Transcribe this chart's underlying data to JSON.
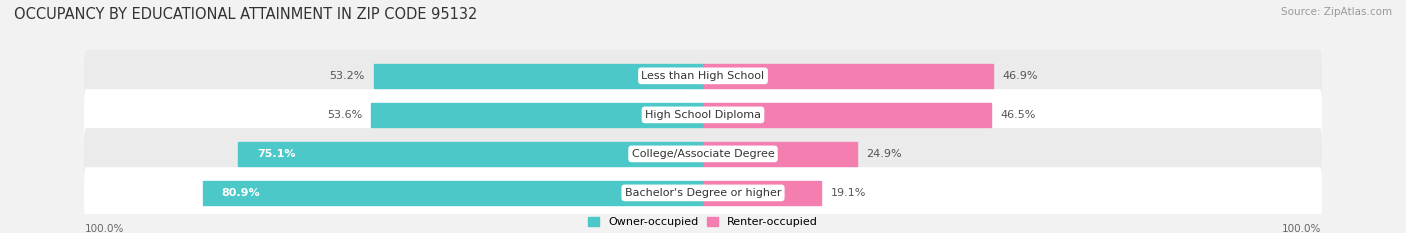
{
  "title": "OCCUPANCY BY EDUCATIONAL ATTAINMENT IN ZIP CODE 95132",
  "source": "Source: ZipAtlas.com",
  "categories": [
    "Less than High School",
    "High School Diploma",
    "College/Associate Degree",
    "Bachelor's Degree or higher"
  ],
  "owner_pct": [
    53.2,
    53.6,
    75.1,
    80.9
  ],
  "renter_pct": [
    46.9,
    46.5,
    24.9,
    19.1
  ],
  "owner_color": "#4dc8c8",
  "renter_color": "#f47eb0",
  "bg_color": "#f2f2f2",
  "row_color_even": "#ffffff",
  "row_color_odd": "#ebebeb",
  "title_fontsize": 10.5,
  "label_fontsize": 8.0,
  "source_fontsize": 7.5,
  "cat_label_fontsize": 8.0,
  "pct_inside_color": "#ffffff",
  "pct_outside_color": "#555555",
  "axis_label": "100.0%",
  "legend_owner": "Owner-occupied",
  "legend_renter": "Renter-occupied"
}
